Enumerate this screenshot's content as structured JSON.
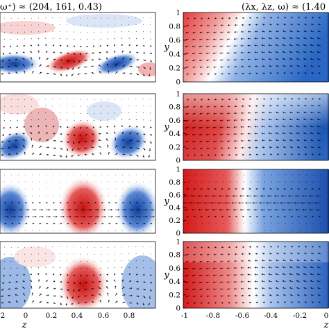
{
  "figure": {
    "left_title": "ω⁺) ≈ (204, 161, 0.43)",
    "right_title": "(λx, λz, ω) ≈ (1.40",
    "left_x_ticks": [
      "2",
      "0",
      "0.2",
      "0.4",
      "0.6",
      "0.8"
    ],
    "right_x_ticks": [
      "-1",
      "-0.8",
      "-0.6",
      "-0.4",
      "-0.2",
      "0"
    ],
    "y_ticks": [
      "0",
      "0.2",
      "0.4",
      "0.6",
      "0.8",
      "1"
    ],
    "xlabel": "z",
    "ylabel": "y",
    "colormap": {
      "negative": "#1f5fbf",
      "zero": "#ffffff",
      "positive": "#d11a1a"
    }
  },
  "chart_data": [
    {
      "type": "heatmap",
      "panel": "left-row-1",
      "xlim": [
        -0.2,
        1.0
      ],
      "ylim": [
        0,
        1
      ],
      "pattern": "tilted streaks near wall, alternating blue/red"
    },
    {
      "type": "heatmap",
      "panel": "left-row-2",
      "xlim": [
        -0.2,
        1.0
      ],
      "ylim": [
        0,
        1
      ],
      "pattern": "tilted streaks, alternating"
    },
    {
      "type": "heatmap",
      "panel": "left-row-3",
      "xlim": [
        -0.2,
        1.0
      ],
      "ylim": [
        0,
        1
      ],
      "pattern": "vertical streaks, blue/red/blue"
    },
    {
      "type": "heatmap",
      "panel": "left-row-4",
      "xlim": [
        -0.2,
        1.0
      ],
      "ylim": [
        0,
        1
      ],
      "pattern": "vertical streaks, weak"
    },
    {
      "type": "heatmap",
      "panel": "right-row-1",
      "xlim": [
        -1,
        0
      ],
      "ylim": [
        0,
        1
      ],
      "yticks": [
        0,
        0.2,
        0.4,
        0.6,
        0.8,
        1
      ]
    },
    {
      "type": "heatmap",
      "panel": "right-row-2",
      "xlim": [
        -1,
        0
      ],
      "ylim": [
        0,
        1
      ],
      "yticks": [
        0,
        0.2,
        0.4,
        0.6,
        0.8,
        1
      ]
    },
    {
      "type": "heatmap",
      "panel": "right-row-3",
      "xlim": [
        -1,
        0
      ],
      "ylim": [
        0,
        1
      ],
      "yticks": [
        0,
        0.2,
        0.4,
        0.6,
        0.8,
        1
      ]
    },
    {
      "type": "heatmap",
      "panel": "right-row-4",
      "xlim": [
        -1,
        0
      ],
      "ylim": [
        0,
        1
      ],
      "yticks": [
        0,
        0.2,
        0.4,
        0.6,
        0.8,
        1
      ]
    }
  ]
}
